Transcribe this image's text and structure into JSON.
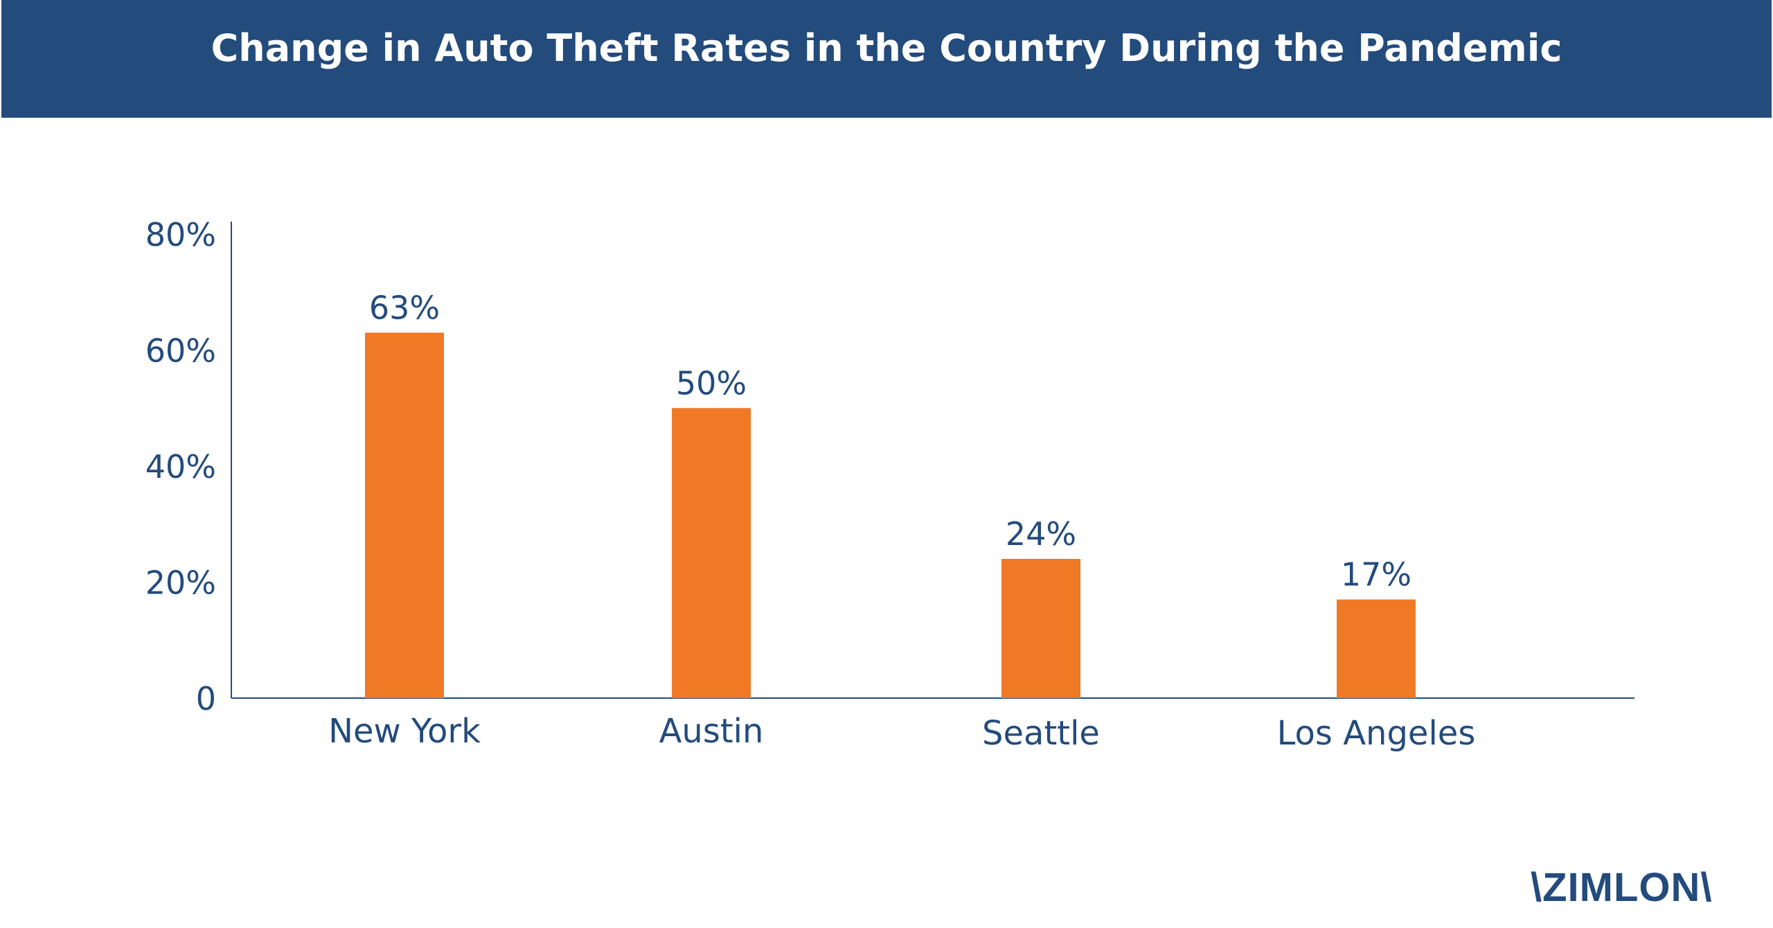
{
  "header": {
    "title": "Change in Auto Theft Rates in the Country During the Pandemic"
  },
  "colors": {
    "header_bg": "#234b7c",
    "text": "#234b7c",
    "bar": "#f07926",
    "axis": "#234b7c"
  },
  "chart_data": {
    "type": "bar",
    "title": "",
    "xlabel": "",
    "ylabel": "",
    "categories": [
      "New York",
      "Austin",
      "Seattle",
      "Los Angeles"
    ],
    "values": [
      63,
      50,
      24,
      17
    ],
    "data_labels": [
      "63%",
      "50%",
      "24%",
      "17%"
    ],
    "ylim": [
      0,
      80
    ],
    "y_ticks": [
      0,
      20,
      40,
      60,
      80
    ],
    "y_tick_labels": [
      "0",
      "20%",
      "40%",
      "60%",
      "80%"
    ],
    "grid": false,
    "legend": "none"
  },
  "logo": {
    "text": "\\ZIMLON\\"
  }
}
